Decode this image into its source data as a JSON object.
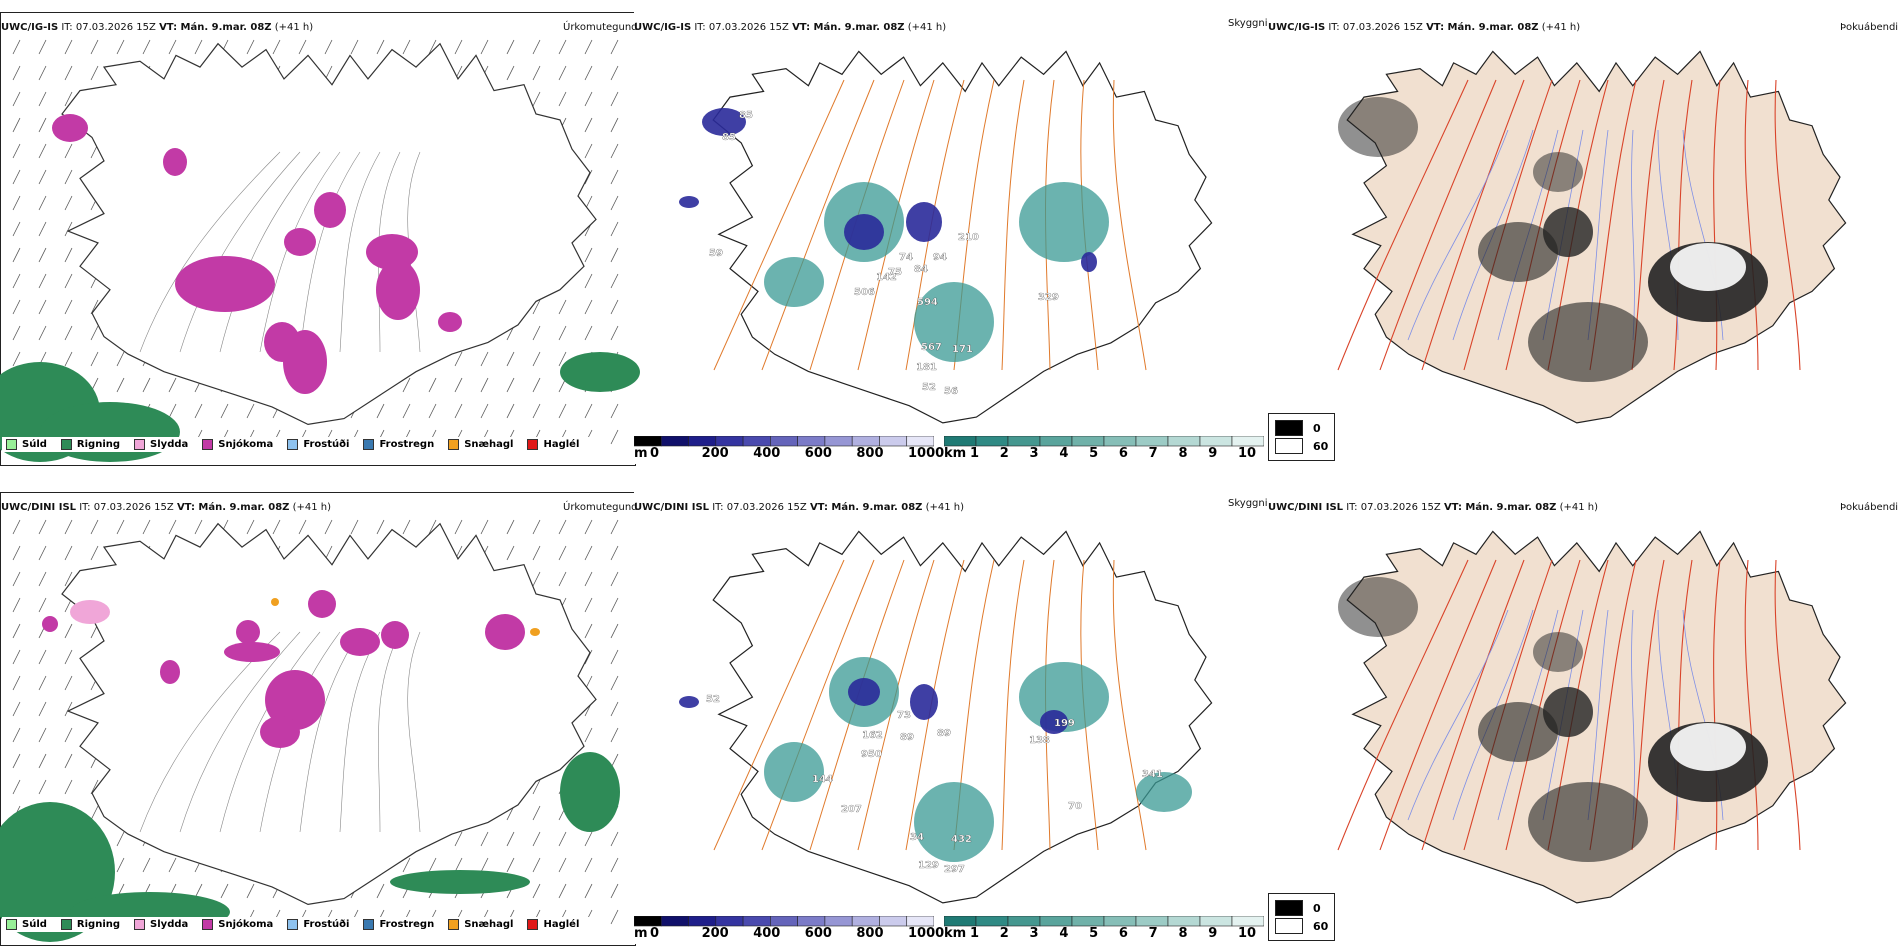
{
  "colors": {
    "snow": "#c23aa6",
    "rain": "#2e8b57",
    "sleet": "#f0a6d8",
    "drizzle": "#98f098",
    "freezing_drizzle": "#8ec2ee",
    "freezing_rain": "#3a79b0",
    "snow_pellets": "#f0a020",
    "hail": "#e01818",
    "roads": "#e07a2c",
    "cloud_teal": "#3a9a94",
    "cloud_blue": "#2a2a9a",
    "land": "#f1e0d0",
    "rivers": "#7f8fe6",
    "roads_red": "#d9442a"
  },
  "rows": [
    {
      "model": "UWC/IG-IS",
      "it_label": "IT: 07.03.2026 15Z",
      "vt_label": "VT: Mán. 9.mar. 08Z",
      "lead": "(+41 h)",
      "precip_title": "Úrkomutegund",
      "cloud_title": "Skyggni",
      "fog_title": "Þokuábendi",
      "cloud_labels": [
        "85",
        "85",
        "59",
        "142",
        "74",
        "75",
        "506",
        "84",
        "94",
        "210",
        "594",
        "329",
        "567",
        "171",
        "181",
        "52",
        "56"
      ]
    },
    {
      "model": "UWC/DINI ISL",
      "it_label": "IT: 07.03.2026 15Z",
      "vt_label": "VT: Mán. 9.mar. 08Z",
      "lead": "(+41 h)",
      "precip_title": "Úrkomutegund",
      "cloud_title": "Skyggni",
      "fog_title": "Þokuábendi",
      "cloud_labels": [
        "52",
        "73",
        "162",
        "89",
        "89",
        "950",
        "144",
        "207",
        "199",
        "138",
        "341",
        "70",
        "34",
        "432",
        "129",
        "297"
      ]
    }
  ],
  "precip_legend": [
    {
      "label": "Súld",
      "color_key": "drizzle"
    },
    {
      "label": "Rigning",
      "color_key": "rain"
    },
    {
      "label": "Slydda",
      "color_key": "sleet"
    },
    {
      "label": "Snjókoma",
      "color_key": "snow"
    },
    {
      "label": "Frostúði",
      "color_key": "freezing_drizzle"
    },
    {
      "label": "Frostregn",
      "color_key": "freezing_rain"
    },
    {
      "label": "Snæhagl",
      "color_key": "snow_pellets"
    },
    {
      "label": "Haglél",
      "color_key": "hail"
    }
  ],
  "cloud_base_bar": {
    "unit": "m",
    "ticks": [
      "0",
      "200",
      "400",
      "600",
      "800",
      "1000"
    ],
    "colors": [
      "#000000",
      "#10106a",
      "#1e1e8a",
      "#3434a0",
      "#4a4aae",
      "#6464ba",
      "#7c7cc8",
      "#9696d4",
      "#b0b0e0",
      "#cbcbec",
      "#e6e6f7"
    ]
  },
  "visibility_bar": {
    "unit": "km",
    "ticks": [
      "1",
      "2",
      "3",
      "4",
      "5",
      "6",
      "7",
      "8",
      "9",
      "10"
    ],
    "colors": [
      "#1f7a74",
      "#2f8a84",
      "#45978f",
      "#5aa49c",
      "#70b1a9",
      "#86beb7",
      "#9ccbc5",
      "#b4d8d3",
      "#cbe5e1",
      "#e4f2f0"
    ]
  },
  "fog_legend": [
    {
      "label": "0",
      "color": "#000000"
    },
    {
      "label": "60",
      "color": "#ffffff"
    }
  ]
}
